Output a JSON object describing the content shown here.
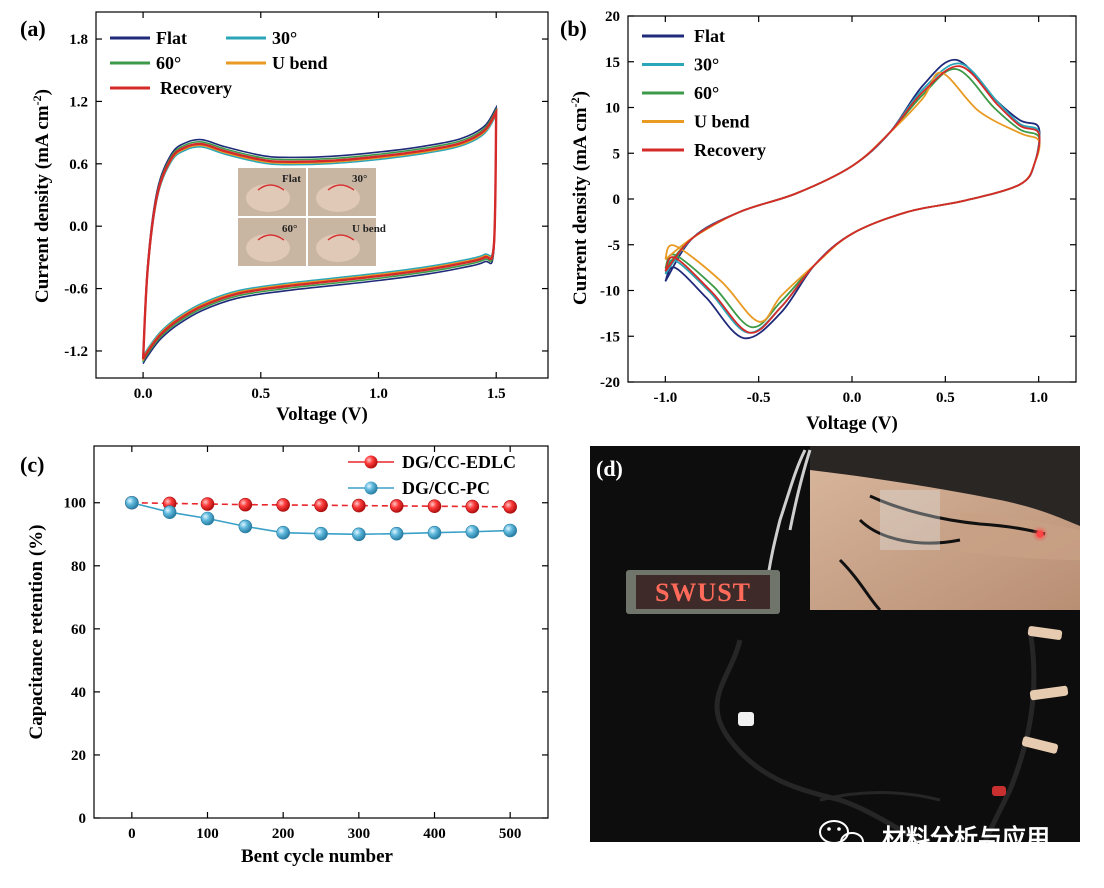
{
  "panels": {
    "a": "(a)",
    "b": "(b)",
    "c": "(c)",
    "d": "(d)"
  },
  "chart_data": [
    {
      "panel": "(a)",
      "type": "line",
      "xlabel": "Voltage (V)",
      "ylabel": "Current density (mA cm",
      "ylabel_sup": "-2",
      "ylabel_end": ")",
      "xlim": [
        -0.2,
        1.72
      ],
      "ylim": [
        -1.46,
        2.06
      ],
      "xticks": [
        0.0,
        0.5,
        1.0,
        1.5
      ],
      "xtick_labels": [
        "0.0",
        "0.5",
        "1.0",
        "1.5"
      ],
      "yticks": [
        -1.2,
        -0.6,
        0.0,
        0.6,
        1.2,
        1.8
      ],
      "ytick_labels": [
        "-1.2",
        "-0.6",
        "0.0",
        "0.6",
        "1.2",
        "1.8"
      ],
      "legend_placement": "top-left",
      "series": [
        {
          "name": "Flat",
          "color": "#1f2a7a"
        },
        {
          "name": "30°",
          "color": "#2aa6b8"
        },
        {
          "name": "60°",
          "color": "#3c9a48"
        },
        {
          "name": "U bend",
          "color": "#e89a22"
        },
        {
          "name": "Recovery",
          "color": "#d42a2a"
        }
      ],
      "upper_branch": {
        "x": [
          0.0,
          0.02,
          0.06,
          0.12,
          0.18,
          0.25,
          0.35,
          0.5,
          0.6,
          0.8,
          1.0,
          1.2,
          1.35,
          1.45,
          1.5
        ],
        "y": [
          -1.28,
          -0.4,
          0.3,
          0.65,
          0.76,
          0.79,
          0.72,
          0.64,
          0.62,
          0.63,
          0.67,
          0.73,
          0.8,
          0.92,
          1.1
        ]
      },
      "lower_branch": {
        "x": [
          1.5,
          1.49,
          1.45,
          1.35,
          1.2,
          1.0,
          0.8,
          0.6,
          0.4,
          0.25,
          0.15,
          0.08,
          0.04,
          0.01,
          0.0
        ],
        "y": [
          1.1,
          -0.18,
          -0.3,
          -0.36,
          -0.42,
          -0.48,
          -0.53,
          -0.58,
          -0.65,
          -0.77,
          -0.9,
          -1.03,
          -1.14,
          -1.24,
          -1.28
        ]
      },
      "inset_labels": [
        "Flat",
        "30°",
        "60°",
        "U bend"
      ]
    },
    {
      "panel": "(b)",
      "type": "line",
      "xlabel": "Voltage (V)",
      "ylabel": "Current density (mA cm",
      "ylabel_sup": "-2",
      "ylabel_end": ")",
      "xlim": [
        -1.2,
        1.2
      ],
      "ylim": [
        -20,
        20
      ],
      "xticks": [
        -1.0,
        -0.5,
        0.0,
        0.5,
        1.0
      ],
      "xtick_labels": [
        "-1.0",
        "-0.5",
        "0.0",
        "0.5",
        "1.0"
      ],
      "yticks": [
        -20,
        -15,
        -10,
        -5,
        0,
        5,
        10,
        15,
        20
      ],
      "ytick_labels": [
        "-20",
        "-15",
        "-10",
        "-5",
        "0",
        "5",
        "10",
        "15",
        "20"
      ],
      "legend_placement": "top-left",
      "series": [
        {
          "name": "Flat",
          "color": "#1f2a7a",
          "peak_anodic": [
            0.56,
            15.2
          ],
          "peak_cathodic": [
            -0.58,
            -15.2
          ],
          "end_high": 7.8,
          "end_low": -9.0
        },
        {
          "name": "30°",
          "color": "#2aa6b8",
          "peak_anodic": [
            0.58,
            14.8
          ],
          "peak_cathodic": [
            -0.56,
            -14.6
          ],
          "end_high": 7.4,
          "end_low": -8.2
        },
        {
          "name": "60°",
          "color": "#3c9a48",
          "peak_anodic": [
            0.56,
            14.2
          ],
          "peak_cathodic": [
            -0.54,
            -14.0
          ],
          "end_high": 6.8,
          "end_low": -7.6
        },
        {
          "name": "U bend",
          "color": "#e89a22",
          "peak_anodic": [
            0.48,
            13.8
          ],
          "peak_cathodic": [
            -0.5,
            -13.4
          ],
          "end_high": 6.4,
          "end_low": -6.6
        },
        {
          "name": "Recovery",
          "color": "#d42a2a",
          "peak_anodic": [
            0.58,
            14.5
          ],
          "peak_cathodic": [
            -0.55,
            -14.6
          ],
          "end_high": 7.2,
          "end_low": -7.9
        }
      ]
    },
    {
      "panel": "(c)",
      "type": "scatter",
      "xlabel": "Bent cycle number",
      "ylabel": "Capacitance retention (%)",
      "xlim": [
        -50,
        550
      ],
      "ylim": [
        0,
        118
      ],
      "xticks": [
        0,
        100,
        200,
        300,
        400,
        500
      ],
      "xtick_labels": [
        "0",
        "100",
        "200",
        "300",
        "400",
        "500"
      ],
      "yticks": [
        0,
        20,
        40,
        60,
        80,
        100
      ],
      "ytick_labels": [
        "0",
        "20",
        "40",
        "60",
        "80",
        "100"
      ],
      "legend_placement": "top-right",
      "x": [
        0,
        50,
        100,
        150,
        200,
        250,
        300,
        350,
        400,
        450,
        500
      ],
      "series": [
        {
          "name": "DG/CC-EDLC",
          "color": "#e8262b",
          "values": [
            100,
            99.8,
            99.6,
            99.4,
            99.3,
            99.2,
            99.1,
            99.0,
            98.9,
            98.8,
            98.7
          ]
        },
        {
          "name": "DG/CC-PC",
          "color": "#3aa0c8",
          "values": [
            100,
            97,
            95,
            92.5,
            90.5,
            90.2,
            90,
            90.2,
            90.5,
            90.8,
            91.2
          ]
        }
      ]
    }
  ],
  "photo": {
    "led_text": "SWUST",
    "watermark": "材料分析与应用",
    "wechat_icon": "wechat-icon"
  }
}
